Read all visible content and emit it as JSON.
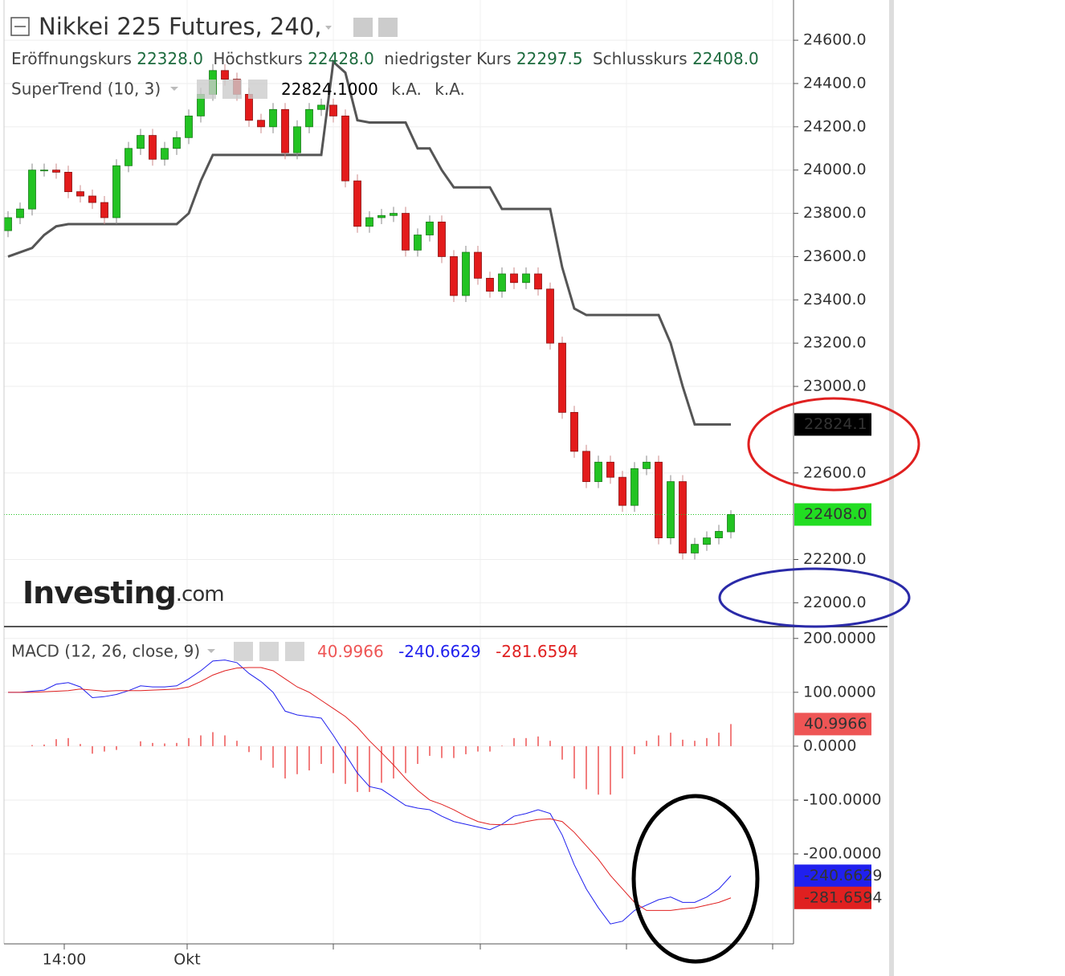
{
  "chart_data": [
    {
      "type": "candlestick",
      "title": "Nikkei 225 Futures, 240,",
      "ohlc_legend": [
        {
          "name": "Eröffnungskurs",
          "value": "22328.0"
        },
        {
          "name": "Höchstkurs",
          "value": "22428.0"
        },
        {
          "name": "niedrigster Kurs",
          "value": "22297.5"
        },
        {
          "name": "Schlusskurs",
          "value": "22408.0"
        }
      ],
      "indicator": {
        "name": "SuperTrend (10, 3)",
        "value": "22824.1000",
        "extra": [
          "k.A.",
          "k.A."
        ],
        "color": "#555555"
      },
      "watermark": [
        "Investing",
        ".com"
      ],
      "up_color": "#22c322",
      "down_color": "#e31b1b",
      "open": [
        23720,
        23780,
        23820,
        24000,
        24000,
        23990,
        23900,
        23880,
        23850,
        23780,
        24020,
        24100,
        24160,
        24050,
        24100,
        24150,
        24250,
        24350,
        24460,
        24420,
        24350,
        24230,
        24200,
        24280,
        24080,
        24200,
        24280,
        24300,
        24250,
        23950,
        23740,
        23780,
        23790,
        23800,
        23630,
        23700,
        23760,
        23600,
        23420,
        23620,
        23500,
        23440,
        23520,
        23480,
        23520,
        23450,
        23200,
        22880,
        22700,
        22560,
        22650,
        22580,
        22450,
        22620,
        22650,
        22300,
        22560,
        22230,
        22270,
        22300,
        22328
      ],
      "high": [
        23810,
        23850,
        24030,
        24030,
        24030,
        24020,
        23930,
        23910,
        23880,
        24050,
        24130,
        24190,
        24190,
        24130,
        24180,
        24280,
        24380,
        24490,
        24490,
        24450,
        24380,
        24260,
        24310,
        24310,
        24230,
        24310,
        24330,
        24330,
        24280,
        23980,
        23810,
        23820,
        23830,
        23830,
        23730,
        23790,
        23790,
        23630,
        23650,
        23650,
        23530,
        23550,
        23550,
        23550,
        23550,
        23480,
        23230,
        22910,
        22730,
        22680,
        22680,
        22610,
        22650,
        22680,
        22680,
        22590,
        22590,
        22300,
        22330,
        22360,
        22428
      ],
      "low": [
        23690,
        23750,
        23790,
        23970,
        23960,
        23870,
        23850,
        23820,
        23750,
        23750,
        23990,
        24070,
        24020,
        24020,
        24070,
        24120,
        24220,
        24320,
        24390,
        24320,
        24200,
        24170,
        24170,
        24050,
        24050,
        24170,
        24250,
        24220,
        23920,
        23710,
        23710,
        23750,
        23760,
        23600,
        23600,
        23670,
        23570,
        23390,
        23390,
        23470,
        23410,
        23410,
        23450,
        23450,
        23420,
        23170,
        22850,
        22670,
        22530,
        22530,
        22550,
        22420,
        22420,
        22590,
        22270,
        22270,
        22200,
        22200,
        22240,
        22270,
        22297.5
      ],
      "close": [
        23780,
        23820,
        24000,
        24000,
        23990,
        23900,
        23880,
        23850,
        23780,
        24020,
        24100,
        24160,
        24050,
        24100,
        24150,
        24250,
        24350,
        24460,
        24420,
        24350,
        24230,
        24200,
        24280,
        24080,
        24200,
        24280,
        24300,
        24250,
        23950,
        23740,
        23780,
        23790,
        23800,
        23630,
        23700,
        23760,
        23600,
        23420,
        23620,
        23500,
        23440,
        23520,
        23480,
        23520,
        23450,
        23200,
        22880,
        22700,
        22560,
        22650,
        22580,
        22450,
        22620,
        22650,
        22300,
        22560,
        22230,
        22270,
        22300,
        22330,
        22408
      ],
      "supertrend": [
        23600,
        23620,
        23640,
        23700,
        23740,
        23750,
        23750,
        23750,
        23750,
        23750,
        23750,
        23750,
        23750,
        23750,
        23750,
        23800,
        23950,
        24070,
        24070,
        24070,
        24070,
        24070,
        24070,
        24070,
        24070,
        24070,
        24070,
        24500,
        24450,
        24230,
        24220,
        24220,
        24220,
        24220,
        24100,
        24100,
        24000,
        23920,
        23920,
        23920,
        23920,
        23820,
        23820,
        23820,
        23820,
        23820,
        23550,
        23360,
        23330,
        23330,
        23330,
        23330,
        23330,
        23330,
        23330,
        23200,
        23000,
        22824.1,
        22824.1,
        22824.1,
        22824.1
      ],
      "price_badges": [
        {
          "label": "22824.1",
          "value": 22824.1,
          "color": "#000000"
        },
        {
          "label": "22408.0",
          "value": 22408,
          "color": "#22dd22"
        }
      ],
      "ylim": [
        21890,
        24786
      ],
      "yticks": [
        {
          "value": 24600,
          "label": "24600.0"
        },
        {
          "value": 24400,
          "label": "24400.0"
        },
        {
          "value": 24200,
          "label": "24200.0"
        },
        {
          "value": 24000,
          "label": "24000.0"
        },
        {
          "value": 23800,
          "label": "23800.0"
        },
        {
          "value": 23600,
          "label": "23600.0"
        },
        {
          "value": 23400,
          "label": "23400.0"
        },
        {
          "value": 23200,
          "label": "23200.0"
        },
        {
          "value": 23000,
          "label": "23000.0"
        },
        {
          "value": 22600,
          "label": "22600.0"
        },
        {
          "value": 22200,
          "label": "22200.0"
        },
        {
          "value": 22000,
          "label": "22000.0"
        }
      ],
      "grid": true
    },
    {
      "type": "macd",
      "title": "MACD (12, 26, close, 9)",
      "series": [
        {
          "name": "Histogram",
          "color": "#ee5555",
          "last_label": "40.9966",
          "values": [
            0,
            0,
            2,
            3,
            13,
            15,
            4,
            -14,
            -10,
            -7,
            0,
            9,
            6,
            5,
            6,
            15,
            20,
            26,
            20,
            10,
            -11,
            -26,
            -40,
            -60,
            -52,
            -45,
            -33,
            -50,
            -70,
            -85,
            -85,
            -68,
            -60,
            -50,
            -33,
            -18,
            -22,
            -22,
            -15,
            -10,
            -10,
            1,
            15,
            15,
            18,
            10,
            -25,
            -60,
            -80,
            -90,
            -90,
            -60,
            -15,
            10,
            20,
            25,
            12,
            10,
            15,
            25,
            40.9966
          ]
        },
        {
          "name": "MACD",
          "color": "#2020ee",
          "last_label": "-240.6629",
          "values": [
            100,
            100,
            102,
            104,
            115,
            118,
            110,
            90,
            92,
            96,
            103,
            112,
            110,
            110,
            112,
            125,
            140,
            158,
            160,
            155,
            135,
            120,
            100,
            65,
            58,
            55,
            52,
            20,
            -15,
            -50,
            -75,
            -80,
            -95,
            -110,
            -115,
            -118,
            -130,
            -140,
            -145,
            -150,
            -155,
            -145,
            -130,
            -125,
            -118,
            -125,
            -165,
            -220,
            -265,
            -300,
            -330,
            -325,
            -305,
            -295,
            -285,
            -280,
            -290,
            -290,
            -280,
            -265,
            -240.6629
          ]
        },
        {
          "name": "Signal",
          "color": "#e02020",
          "last_label": "-281.6594",
          "values": [
            100,
            100,
            100,
            101,
            102,
            103,
            106,
            104,
            102,
            103,
            103,
            103,
            104,
            105,
            106,
            110,
            120,
            132,
            140,
            145,
            146,
            146,
            140,
            125,
            110,
            100,
            85,
            70,
            55,
            35,
            10,
            -12,
            -35,
            -60,
            -82,
            -100,
            -108,
            -118,
            -130,
            -140,
            -145,
            -146,
            -145,
            -140,
            -136,
            -135,
            -140,
            -160,
            -185,
            -210,
            -240,
            -265,
            -290,
            -305,
            -305,
            -305,
            -302,
            -300,
            -295,
            -290,
            -281.6594
          ]
        }
      ],
      "ylim": [
        -367,
        222
      ],
      "yticks": [
        {
          "value": 200,
          "label": "200.0000"
        },
        {
          "value": 100,
          "label": "100.0000"
        },
        {
          "value": 0,
          "label": "0.0000"
        },
        {
          "value": -100,
          "label": "-100.0000"
        },
        {
          "value": -200,
          "label": "-200.0000"
        }
      ],
      "grid": true,
      "x_axis_labels": [
        "14:00",
        "Okt"
      ]
    }
  ]
}
